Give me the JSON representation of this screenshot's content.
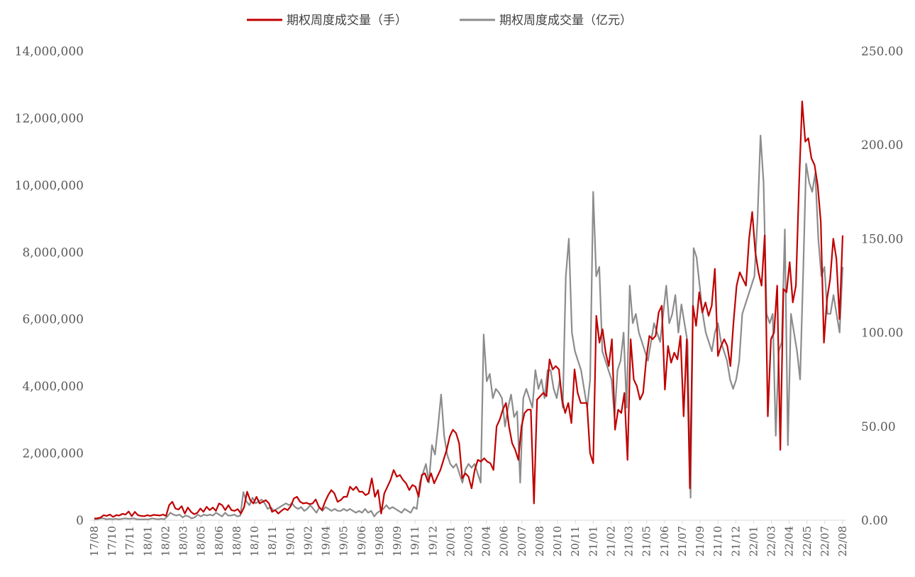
{
  "chart_data": {
    "type": "line",
    "legend": {
      "position": "top",
      "entries": [
        {
          "label": "期权周度成交量（手）",
          "color": "#c00000"
        },
        {
          "label": "期权周度成交量（亿元）",
          "color": "#8c8c8c"
        }
      ]
    },
    "grid": false,
    "y_left": {
      "range": [
        0,
        14000000
      ],
      "ticks": [
        "0",
        "2,000,000",
        "4,000,000",
        "6,000,000",
        "8,000,000",
        "10,000,000",
        "12,000,000",
        "14,000,000"
      ]
    },
    "y_right": {
      "range": [
        0,
        250
      ],
      "ticks": [
        "0.00",
        "50.00",
        "100.00",
        "150.00",
        "200.00",
        "250.00"
      ]
    },
    "x_ticks": [
      "17/08",
      "17/10",
      "17/11",
      "18/01",
      "18/02",
      "18/03",
      "18/05",
      "18/06",
      "18/08",
      "18/10",
      "18/11",
      "19/01",
      "19/02",
      "19/04",
      "19/05",
      "19/06",
      "19/08",
      "19/09",
      "19/11",
      "19/12",
      "20/01",
      "20/03",
      "20/04",
      "20/06",
      "20/07",
      "20/08",
      "20/10",
      "20/11",
      "21/01",
      "21/02",
      "21/03",
      "21/05",
      "21/06",
      "21/07",
      "21/09",
      "21/10",
      "21/12",
      "22/01",
      "22/03",
      "22/04",
      "22/05",
      "22/07",
      "22/08"
    ],
    "series": [
      {
        "name": "期权周度成交量（手）",
        "axis": "left",
        "color": "#c00000",
        "values": [
          50000,
          60000,
          80000,
          150000,
          130000,
          170000,
          100000,
          150000,
          140000,
          190000,
          170000,
          260000,
          120000,
          250000,
          150000,
          130000,
          120000,
          150000,
          130000,
          160000,
          150000,
          140000,
          170000,
          130000,
          450000,
          550000,
          350000,
          320000,
          420000,
          200000,
          380000,
          250000,
          180000,
          220000,
          350000,
          250000,
          400000,
          300000,
          380000,
          280000,
          500000,
          450000,
          300000,
          450000,
          300000,
          280000,
          330000,
          200000,
          380000,
          850000,
          600000,
          500000,
          700000,
          500000,
          550000,
          600000,
          500000,
          250000,
          300000,
          200000,
          280000,
          350000,
          300000,
          420000,
          650000,
          700000,
          550000,
          500000,
          520000,
          480000,
          500000,
          620000,
          400000,
          300000,
          550000,
          750000,
          900000,
          800000,
          550000,
          600000,
          700000,
          700000,
          1000000,
          900000,
          1000000,
          850000,
          850000,
          750000,
          800000,
          1250000,
          700000,
          900000,
          200000,
          800000,
          1000000,
          1200000,
          1500000,
          1300000,
          1350000,
          1200000,
          1100000,
          900000,
          1050000,
          1000000,
          700000,
          1350000,
          1400000,
          1150000,
          1400000,
          1100000,
          1300000,
          1500000,
          1800000,
          2100000,
          2500000,
          2700000,
          2600000,
          2300000,
          1250000,
          1400000,
          1300000,
          950000,
          1500000,
          1800000,
          1750000,
          1850000,
          1750000,
          1700000,
          1500000,
          2800000,
          3000000,
          3300000,
          3500000,
          2800000,
          2300000,
          2100000,
          1800000,
          2800000,
          3200000,
          3300000,
          3300000,
          500000,
          3600000,
          3700000,
          3800000,
          3700000,
          4800000,
          4500000,
          4600000,
          4500000,
          3600000,
          3200000,
          3500000,
          2900000,
          4500000,
          3800000,
          3500000,
          3500000,
          3500000,
          2000000,
          1700000,
          6100000,
          5300000,
          5700000,
          5000000,
          4600000,
          5400000,
          2700000,
          3300000,
          3200000,
          3800000,
          1800000,
          5400000,
          4200000,
          4000000,
          3600000,
          3800000,
          4800000,
          5500000,
          5400000,
          5500000,
          6200000,
          6400000,
          3900000,
          5200000,
          4700000,
          5000000,
          4800000,
          5500000,
          3100000,
          5400000,
          950000,
          6400000,
          5800000,
          6800000,
          6200000,
          6500000,
          6100000,
          6400000,
          7500000,
          4900000,
          5200000,
          5400000,
          5200000,
          4600000,
          5900000,
          7000000,
          7400000,
          7200000,
          7000000,
          8400000,
          9200000,
          8000000,
          7400000,
          7000000,
          8500000,
          3100000,
          5400000,
          5600000,
          7000000,
          2100000,
          6900000,
          6800000,
          7700000,
          6500000,
          7000000,
          10000000,
          12500000,
          11300000,
          11400000,
          10800000,
          10600000,
          10000000,
          8900000,
          5300000,
          6600000,
          7200000,
          8400000,
          7800000,
          6000000,
          8500000
        ]
      },
      {
        "name": "期权周度成交量（亿元）",
        "axis": "right",
        "color": "#8c8c8c",
        "values": [
          0.5,
          0.5,
          1,
          1,
          0.5,
          0.7,
          0.5,
          0.8,
          0.5,
          0.7,
          1,
          0.8,
          0.8,
          1,
          0.5,
          0.5,
          0.5,
          0.5,
          0.5,
          1,
          0.7,
          0.5,
          0.8,
          0.5,
          2,
          4,
          3,
          2.5,
          3,
          1.5,
          2.5,
          2,
          1,
          1.5,
          3,
          2,
          3,
          2.5,
          3,
          2.5,
          4,
          3,
          2,
          4,
          2.5,
          2.5,
          3,
          2,
          2.5,
          15,
          10,
          8,
          12,
          9,
          10,
          11,
          9,
          6,
          7,
          5,
          6,
          7,
          8,
          9,
          8,
          9,
          7,
          6,
          7,
          5,
          6,
          8,
          6,
          4,
          7,
          5,
          7,
          6,
          5,
          6,
          5,
          5,
          6,
          5,
          6,
          5,
          4,
          5,
          4,
          6,
          4,
          5,
          2,
          4,
          5,
          6,
          8,
          6,
          7,
          6,
          5,
          4,
          6,
          5,
          4,
          7,
          6,
          20,
          25,
          30,
          20,
          40,
          35,
          50,
          67,
          45,
          35,
          30,
          28,
          30,
          25,
          20,
          27,
          30,
          28,
          30,
          25,
          20,
          99,
          74,
          78,
          65,
          70,
          68,
          65,
          50,
          60,
          67,
          55,
          58,
          20,
          65,
          70,
          65,
          60,
          80,
          70,
          75,
          65,
          80,
          80,
          70,
          65,
          75,
          60,
          130,
          150,
          100,
          90,
          85,
          80,
          70,
          60,
          75,
          175,
          130,
          135,
          90,
          85,
          80,
          75,
          55,
          80,
          85,
          100,
          60,
          125,
          105,
          110,
          100,
          95,
          90,
          85,
          95,
          105,
          100,
          95,
          110,
          125,
          105,
          110,
          120,
          100,
          115,
          105,
          95,
          12,
          145,
          140,
          125,
          110,
          100,
          95,
          90,
          100,
          105,
          95,
          90,
          85,
          75,
          70,
          75,
          85,
          110,
          115,
          120,
          125,
          130,
          160,
          205,
          180,
          110,
          105,
          110,
          45,
          90,
          95,
          155,
          40,
          110,
          100,
          90,
          75,
          130,
          190,
          180,
          175,
          185,
          150,
          130,
          135,
          110,
          110,
          120,
          110,
          100,
          135
        ]
      }
    ]
  }
}
